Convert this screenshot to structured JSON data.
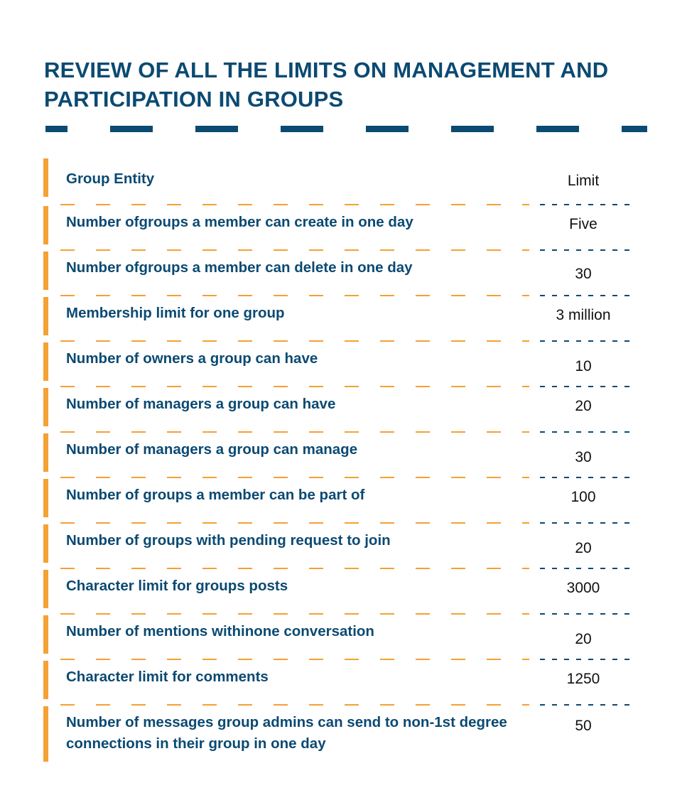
{
  "title": "REVIEW OF ALL THE LIMITS ON MANAGEMENT AND PARTICIPATION IN GROUPS",
  "colors": {
    "primary": "#0b4a72",
    "accent": "#f4a135"
  },
  "table": {
    "header": {
      "entity": "Group Entity",
      "limit": "Limit"
    },
    "rows": [
      {
        "entity": "Number ofgroups a member can create in one day",
        "limit": "Five"
      },
      {
        "entity": "Number ofgroups a member can delete in one day",
        "limit": "30"
      },
      {
        "entity": "Membership limit for one group",
        "limit": "3 million"
      },
      {
        "entity": "Number of owners a group can have",
        "limit": "10"
      },
      {
        "entity": "Number of managers a group can have",
        "limit": "20"
      },
      {
        "entity": "Number of managers a group can manage",
        "limit": "30"
      },
      {
        "entity": "Number of groups a member can be part of",
        "limit": "100"
      },
      {
        "entity": "Number of groups with pending request to join",
        "limit": "20"
      },
      {
        "entity": "Character limit for groups posts",
        "limit": "3000"
      },
      {
        "entity": "Number of mentions withinone conversation",
        "limit": "20"
      },
      {
        "entity": "Character limit for comments",
        "limit": "1250"
      },
      {
        "entity": "Number of messages group admins can send to non-1st degree connections in their group in one day",
        "limit": "50"
      }
    ]
  }
}
